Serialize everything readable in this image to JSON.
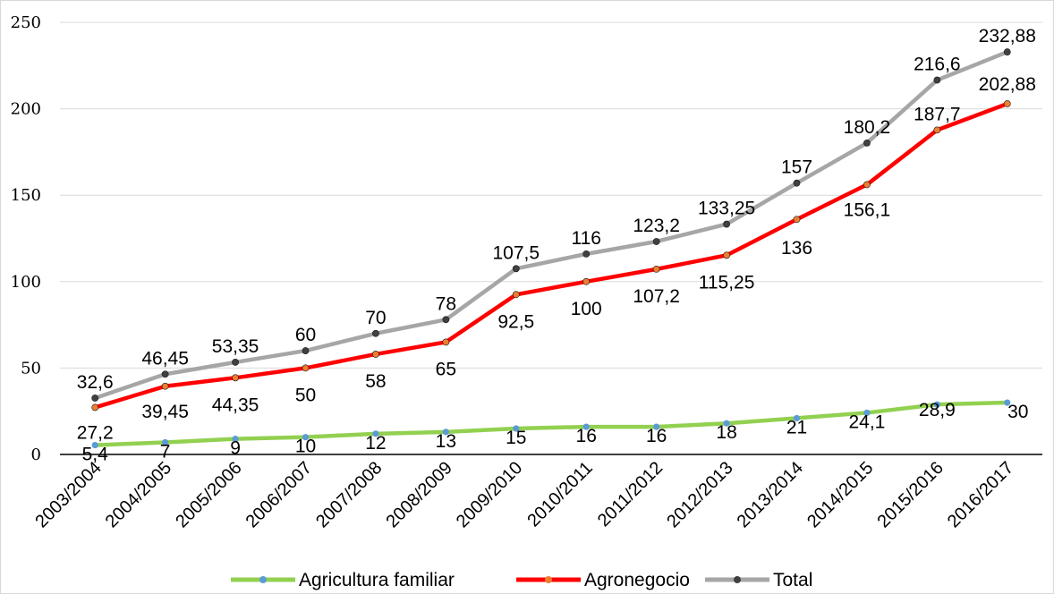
{
  "chart_data": {
    "type": "line",
    "title": "",
    "xlabel": "",
    "ylabel": "",
    "categories": [
      "2003/2004",
      "2004/2005",
      "2005/2006",
      "2006/2007",
      "2007/2008",
      "2008/2009",
      "2009/2010",
      "2010/2011",
      "2011/2012",
      "2012/2013",
      "2013/2014",
      "2014/2015",
      "2015/2016",
      "2016/2017"
    ],
    "ylim": [
      0,
      250
    ],
    "yticks": [
      0,
      50,
      100,
      150,
      200,
      250
    ],
    "grid": true,
    "legend": "bottom",
    "series": [
      {
        "name": "Agricultura familiar",
        "color": "#92d050",
        "marker": "#5b9bd5",
        "values": [
          5.4,
          7,
          9,
          10,
          12,
          13,
          15,
          16,
          16,
          18,
          21,
          24.1,
          28.9,
          30
        ],
        "labels": [
          "5,4",
          "7",
          "9",
          "10",
          "12",
          "13",
          "15",
          "16",
          "16",
          "18",
          "21",
          "24,1",
          "28,9",
          "30"
        ]
      },
      {
        "name": "Agronegocio",
        "color": "#ff0000",
        "marker": "#ed7d31",
        "values": [
          27.2,
          39.45,
          44.35,
          50,
          58,
          65,
          92.5,
          100,
          107.2,
          115.25,
          136,
          156.1,
          187.7,
          202.88
        ],
        "labels": [
          "27,2",
          "39,45",
          "44,35",
          "50",
          "58",
          "65",
          "92,5",
          "100",
          "107,2",
          "115,25",
          "136",
          "156,1",
          "187,7",
          "202,88"
        ]
      },
      {
        "name": "Total",
        "color": "#a6a6a6",
        "marker": "#404040",
        "values": [
          32.6,
          46.45,
          53.35,
          60,
          70,
          78,
          107.5,
          116,
          123.2,
          133.25,
          157,
          180.2,
          216.6,
          232.88
        ],
        "labels": [
          "32,6",
          "46,45",
          "53,35",
          "60",
          "70",
          "78",
          "107,5",
          "116",
          "123,2",
          "133,25",
          "157",
          "180,2",
          "216,6",
          "232,88"
        ]
      }
    ]
  }
}
